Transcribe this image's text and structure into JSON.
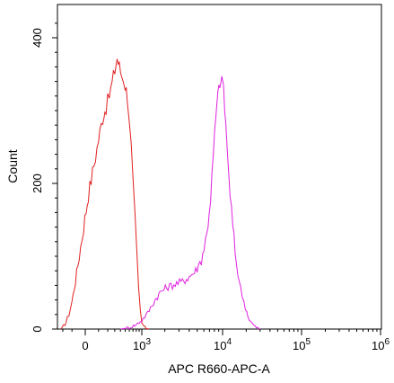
{
  "chart_data": {
    "type": "line",
    "title": "",
    "xlabel": "APC R660-APC-A",
    "ylabel": "Count",
    "y_scale": "linear",
    "ylim": [
      0,
      430
    ],
    "y_ticks": [
      {
        "value": 0,
        "label": "0"
      },
      {
        "value": 200,
        "label": "200"
      },
      {
        "value": 400,
        "label": "400"
      }
    ],
    "x_scale": "biexponential",
    "x_ticks": [
      {
        "value": 0,
        "base": "0",
        "exp": ""
      },
      {
        "value": 1000,
        "base": "10",
        "exp": "3"
      },
      {
        "value": 10000,
        "base": "10",
        "exp": "4"
      },
      {
        "value": 100000,
        "base": "10",
        "exp": "5"
      },
      {
        "value": 1000000,
        "base": "10",
        "exp": "6"
      }
    ],
    "grid": false,
    "legend": "none",
    "series": [
      {
        "color": "#e02020",
        "points": [
          [
            -220,
            0
          ],
          [
            -190,
            4
          ],
          [
            -160,
            10
          ],
          [
            -130,
            20
          ],
          [
            -100,
            38
          ],
          [
            -70,
            65
          ],
          [
            -40,
            100
          ],
          [
            -10,
            140
          ],
          [
            20,
            185
          ],
          [
            60,
            225
          ],
          [
            100,
            260
          ],
          [
            140,
            290
          ],
          [
            180,
            305
          ],
          [
            220,
            320
          ],
          [
            260,
            338
          ],
          [
            300,
            355
          ],
          [
            340,
            372
          ],
          [
            380,
            360
          ],
          [
            420,
            350
          ],
          [
            460,
            345
          ],
          [
            500,
            335
          ],
          [
            550,
            320
          ],
          [
            600,
            290
          ],
          [
            650,
            250
          ],
          [
            700,
            200
          ],
          [
            760,
            150
          ],
          [
            820,
            100
          ],
          [
            880,
            55
          ],
          [
            940,
            25
          ],
          [
            1000,
            8
          ],
          [
            1100,
            2
          ],
          [
            1250,
            0
          ]
        ]
      },
      {
        "color": "#e020e0",
        "points": [
          [
            400,
            0
          ],
          [
            600,
            2
          ],
          [
            800,
            6
          ],
          [
            1000,
            12
          ],
          [
            1200,
            22
          ],
          [
            1500,
            40
          ],
          [
            1800,
            52
          ],
          [
            2200,
            58
          ],
          [
            2700,
            62
          ],
          [
            3300,
            65
          ],
          [
            4000,
            72
          ],
          [
            4800,
            80
          ],
          [
            5600,
            95
          ],
          [
            6500,
            130
          ],
          [
            7200,
            180
          ],
          [
            7800,
            240
          ],
          [
            8300,
            290
          ],
          [
            8800,
            320
          ],
          [
            9300,
            340
          ],
          [
            9800,
            345
          ],
          [
            10300,
            325
          ],
          [
            11000,
            280
          ],
          [
            12000,
            210
          ],
          [
            13500,
            140
          ],
          [
            15000,
            90
          ],
          [
            17000,
            55
          ],
          [
            19500,
            30
          ],
          [
            22000,
            12
          ],
          [
            26000,
            3
          ],
          [
            30000,
            0
          ]
        ]
      }
    ]
  }
}
